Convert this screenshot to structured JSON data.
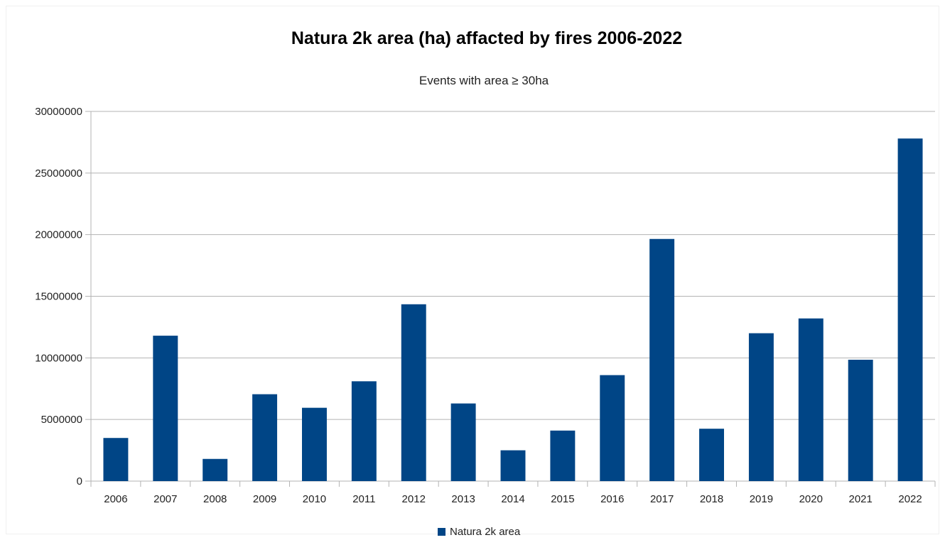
{
  "chart_data": {
    "type": "bar",
    "title": "Natura 2k area (ha) affacted by fires 2006-2022",
    "subtitle": "Events with area ≥ 30ha",
    "categories": [
      "2006",
      "2007",
      "2008",
      "2009",
      "2010",
      "2011",
      "2012",
      "2013",
      "2014",
      "2015",
      "2016",
      "2017",
      "2018",
      "2019",
      "2020",
      "2021",
      "2022"
    ],
    "series": [
      {
        "name": "Natura 2k area",
        "color": "#004586",
        "values": [
          3500000,
          11800000,
          1800000,
          7050000,
          5950000,
          8100000,
          14350000,
          6300000,
          2500000,
          4100000,
          8600000,
          19650000,
          4250000,
          12000000,
          13200000,
          9850000,
          27800000
        ]
      }
    ],
    "yticks": [
      "0",
      "5000000",
      "10000000",
      "15000000",
      "20000000",
      "25000000",
      "30000000"
    ],
    "ylim": [
      0,
      30000000
    ],
    "xlabel": "",
    "ylabel": "",
    "grid": true,
    "legend_position": "bottom"
  }
}
